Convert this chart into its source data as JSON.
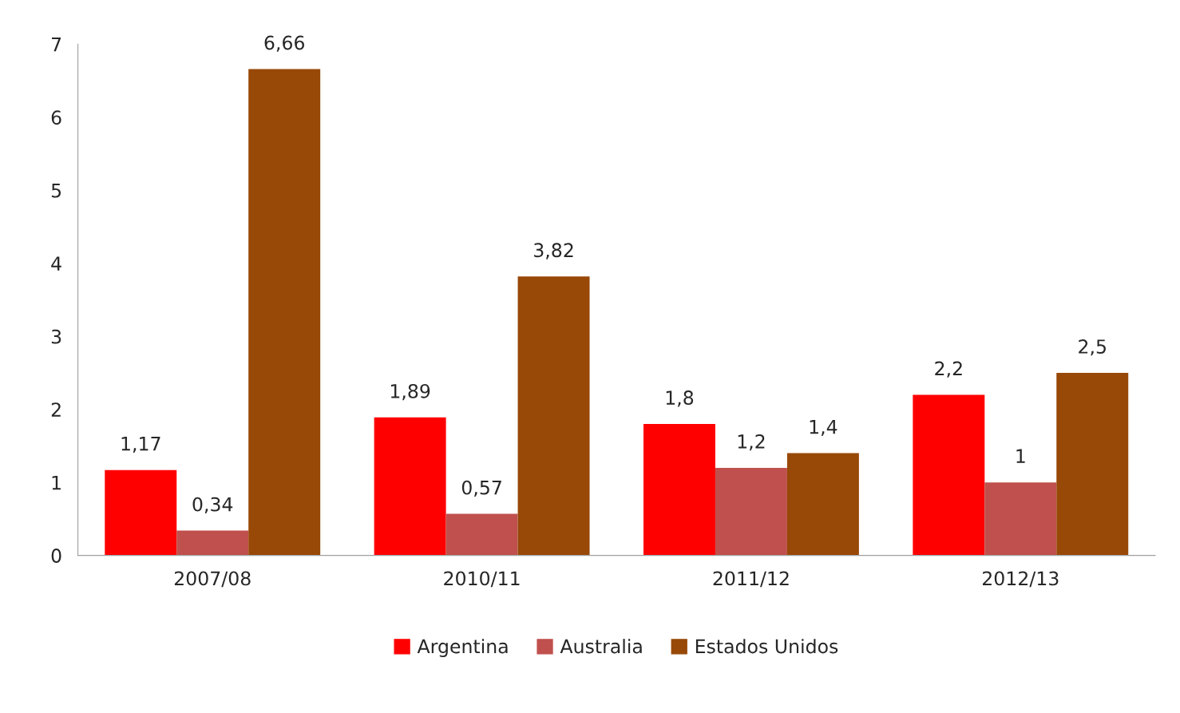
{
  "chart_data": {
    "type": "bar",
    "categories": [
      "2007/08",
      "2010/11",
      "2011/12",
      "2012/13"
    ],
    "series": [
      {
        "name": "Argentina",
        "color": "#ff0000",
        "values": [
          1.17,
          1.89,
          1.8,
          2.2
        ],
        "value_labels": [
          "1,17",
          "1,89",
          "1,8",
          "2,2"
        ]
      },
      {
        "name": "Australia",
        "color": "#c0504d",
        "values": [
          0.34,
          0.57,
          1.2,
          1
        ],
        "value_labels": [
          "0,34",
          "0,57",
          "1,2",
          "1"
        ]
      },
      {
        "name": "Estados Unidos",
        "color": "#984807",
        "values": [
          6.66,
          3.82,
          1.4,
          2.5
        ],
        "value_labels": [
          "6,66",
          "3,82",
          "1,4",
          "2,5"
        ]
      }
    ],
    "ylim": [
      0,
      7
    ],
    "yticks": [
      0,
      1,
      2,
      3,
      4,
      5,
      6,
      7
    ],
    "grid": false,
    "legend": "bottom"
  }
}
